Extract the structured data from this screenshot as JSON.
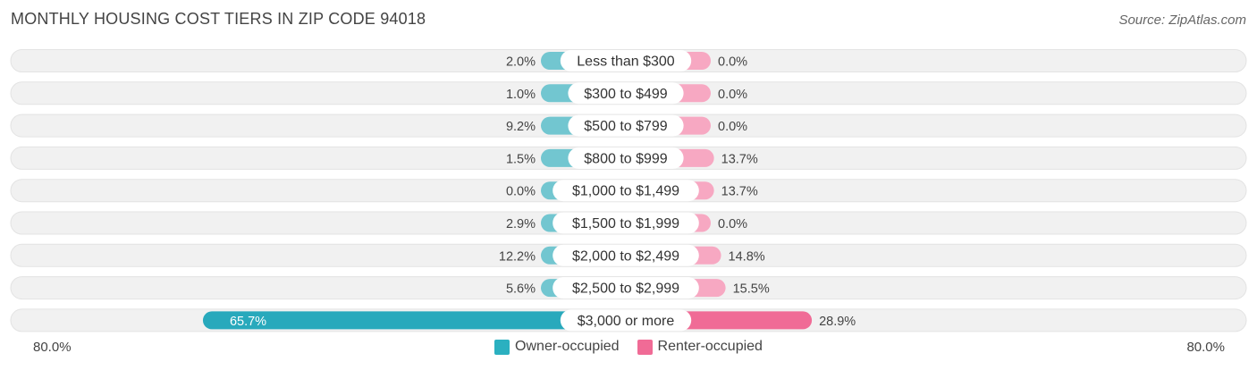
{
  "title": "MONTHLY HOUSING COST TIERS IN ZIP CODE 94018",
  "source": "Source: ZipAtlas.com",
  "colors": {
    "owner": "#72c6d0",
    "owner_strong": "#28a9bc",
    "renter": "#f7a8c2",
    "renter_strong": "#f06b96",
    "row_bg": "#f1f1f1"
  },
  "axis": {
    "left_label": "80.0%",
    "right_label": "80.0%"
  },
  "legend": [
    {
      "label": "Owner-occupied",
      "color": "#2bb0c0"
    },
    {
      "label": "Renter-occupied",
      "color": "#f06b96"
    }
  ],
  "chart_data": {
    "type": "bar",
    "orientation": "horizontal-diverging",
    "title": "MONTHLY HOUSING COST TIERS IN ZIP CODE 94018",
    "xlim": [
      -80,
      80
    ],
    "categories": [
      "Less than $300",
      "$300 to $499",
      "$500 to $799",
      "$800 to $999",
      "$1,000 to $1,499",
      "$1,500 to $1,999",
      "$2,000 to $2,499",
      "$2,500 to $2,999",
      "$3,000 or more"
    ],
    "series": [
      {
        "name": "Owner-occupied",
        "values": [
          2.0,
          1.0,
          9.2,
          1.5,
          0.0,
          2.9,
          12.2,
          5.6,
          65.7
        ],
        "labels": [
          "2.0%",
          "1.0%",
          "9.2%",
          "1.5%",
          "0.0%",
          "2.9%",
          "12.2%",
          "5.6%",
          "65.7%"
        ]
      },
      {
        "name": "Renter-occupied",
        "values": [
          0.0,
          0.0,
          0.0,
          13.7,
          13.7,
          0.0,
          14.8,
          15.5,
          28.9
        ],
        "labels": [
          "0.0%",
          "0.0%",
          "0.0%",
          "13.7%",
          "13.7%",
          "0.0%",
          "14.8%",
          "15.5%",
          "28.9%"
        ]
      }
    ],
    "legend_position": "bottom"
  }
}
